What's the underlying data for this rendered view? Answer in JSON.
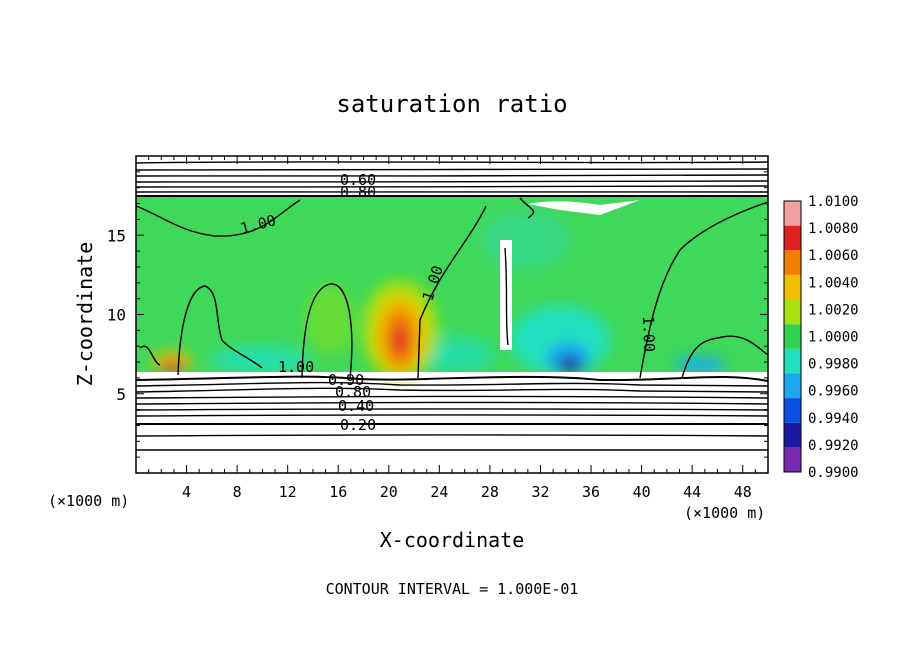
{
  "chart_data": {
    "type": "heatmap",
    "title": "saturation ratio",
    "xlabel": "X-coordinate",
    "ylabel": "Z-coordinate",
    "x_unit_left": "(×1000 m)",
    "x_unit_right": "(×1000 m)",
    "footer": "CONTOUR INTERVAL = 1.000E-01",
    "xlim": [
      0,
      50
    ],
    "ylim": [
      0,
      20
    ],
    "x_ticks": [
      4,
      8,
      12,
      16,
      20,
      24,
      28,
      32,
      36,
      40,
      44,
      48
    ],
    "y_ticks": [
      5,
      10,
      15
    ],
    "colorbar": {
      "levels": [
        "0.9900",
        "0.9920",
        "0.9940",
        "0.9960",
        "0.9980",
        "1.0000",
        "1.0020",
        "1.0040",
        "1.0060",
        "1.0080",
        "1.0100"
      ],
      "colors": [
        "#7a2ab0",
        "#1a1aa0",
        "#0a4fe0",
        "#1aa8f0",
        "#20e0c0",
        "#30d050",
        "#a8e010",
        "#f0c000",
        "#f08000",
        "#e02020",
        "#f0a0a0"
      ]
    },
    "contour_labels": [
      "0.60",
      "0.80",
      "1.00",
      "1.00",
      "1.00",
      "1.00",
      "0.90",
      "0.80",
      "0.40",
      "0.20"
    ]
  }
}
